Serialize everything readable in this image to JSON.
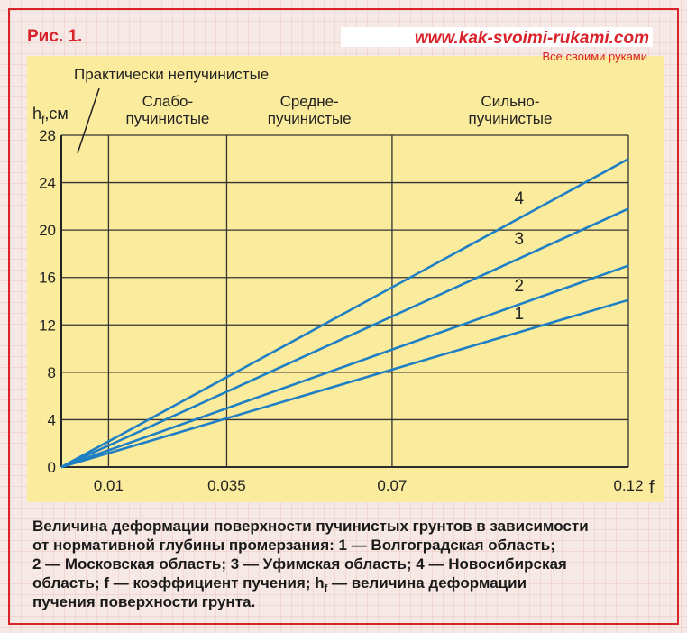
{
  "figure_label": "Рис. 1.",
  "site": {
    "url": "www.kak-svoimi-rukami.com",
    "tagline": "Все своими руками"
  },
  "chart_data": {
    "type": "line",
    "y_label": [
      {
        "text": "h"
      },
      {
        "text": "f",
        "sub": true
      },
      {
        "text": ",см"
      }
    ],
    "x_label": "f",
    "zones": [
      [
        "Практически непучинистые"
      ],
      [
        "Слабо-",
        "пучинистые"
      ],
      [
        "Средне-",
        "пучинистые"
      ],
      [
        "Сильно-",
        "пучинистые"
      ]
    ],
    "x": [
      0,
      0.12
    ],
    "series": [
      {
        "name": "1",
        "color": "#1f7fc4",
        "values": [
          0,
          14.1
        ]
      },
      {
        "name": "2",
        "color": "#1f7fc4",
        "values": [
          0,
          17
        ]
      },
      {
        "name": "3",
        "color": "#1f7fc4",
        "values": [
          0,
          21.8
        ]
      },
      {
        "name": "4",
        "color": "#1f7fc4",
        "values": [
          0,
          26
        ]
      }
    ],
    "xlim": [
      0,
      0.12
    ],
    "xticks": [
      0.01,
      0.035,
      0.07,
      0.12
    ],
    "ylim": [
      0,
      28
    ],
    "yticks": [
      0,
      4,
      8,
      12,
      16,
      20,
      24,
      28
    ],
    "grid": true
  },
  "caption": [
    [
      {
        "text": "Величина деформации поверхности пучинистых грунтов в зависимости"
      }
    ],
    [
      {
        "text": "от нормативной глубины промерзания: 1 — Волгоградская область;"
      }
    ],
    [
      {
        "text": "2 — Московская область; 3 — Уфимская область; 4 — Новосибирская"
      }
    ],
    [
      {
        "text": "область; f — коэффициент пучения; h"
      },
      {
        "text": "f",
        "sub": true
      },
      {
        "text": " — величина деформации"
      }
    ],
    [
      {
        "text": "пучения поверхности грунта."
      }
    ]
  ]
}
